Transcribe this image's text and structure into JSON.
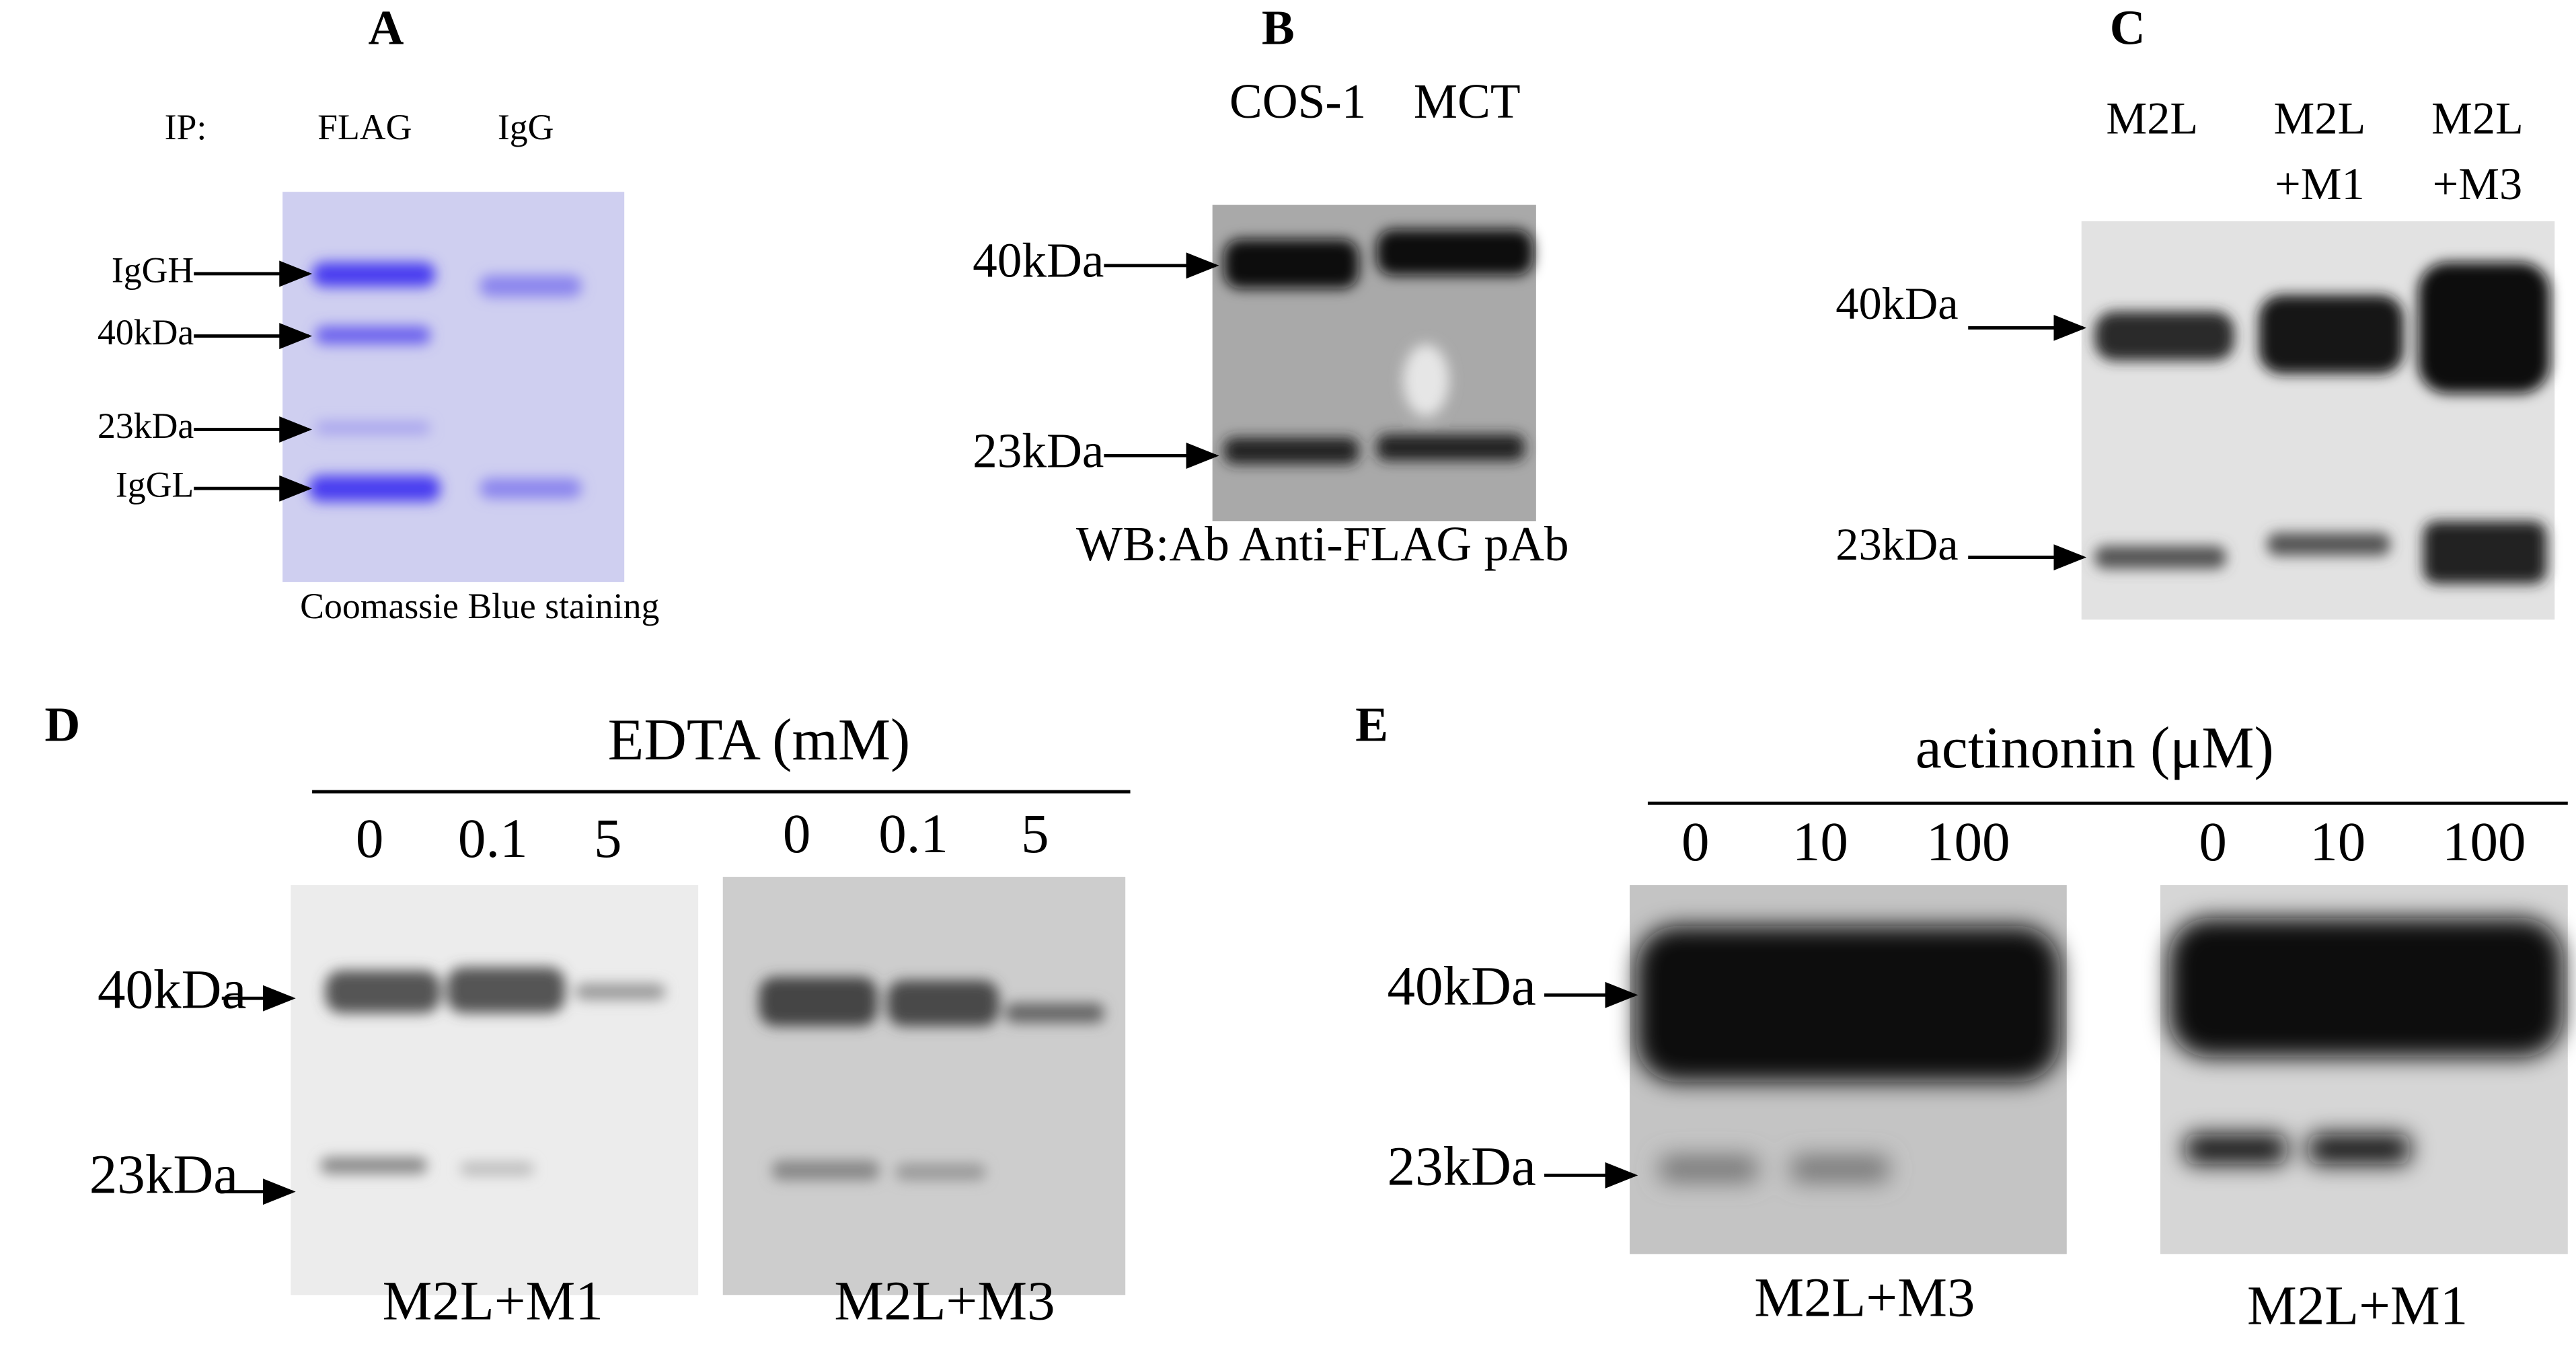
{
  "panels": [
    {
      "label": "A",
      "header": "IP:",
      "lanes": [
        "FLAG",
        "IgG"
      ],
      "markers": [
        "IgGH",
        "40kDa",
        "23kDa",
        "IgGL"
      ],
      "caption": "Coomassie Blue staining"
    },
    {
      "label": "B",
      "lanes": [
        "COS-1",
        "MCT"
      ],
      "markers": [
        "40kDa",
        "23kDa"
      ],
      "caption": "WB:Ab  Anti-FLAG pAb"
    },
    {
      "label": "C",
      "lanes": [
        [
          "M2L"
        ],
        [
          "M2L",
          "+M1"
        ],
        [
          "M2L",
          "+M3"
        ]
      ],
      "markers": [
        "40kDa",
        "23kDa"
      ]
    },
    {
      "label": "D",
      "treatment": "EDTA (mM)",
      "markers": [
        "40kDa",
        "23kDa"
      ],
      "blots": [
        {
          "lanes": [
            "0",
            "0.1",
            "5"
          ],
          "caption": "M2L+M1"
        },
        {
          "lanes": [
            "0",
            "0.1",
            "5"
          ],
          "caption": "M2L+M3"
        }
      ]
    },
    {
      "label": "E",
      "treatment": "actinonin (μM)",
      "markers": [
        "40kDa",
        "23kDa"
      ],
      "blots": [
        {
          "lanes": [
            "0",
            "10",
            "100"
          ],
          "caption": "M2L+M3"
        },
        {
          "lanes": [
            "0",
            "10",
            "100"
          ],
          "caption": "M2L+M1"
        }
      ]
    }
  ]
}
